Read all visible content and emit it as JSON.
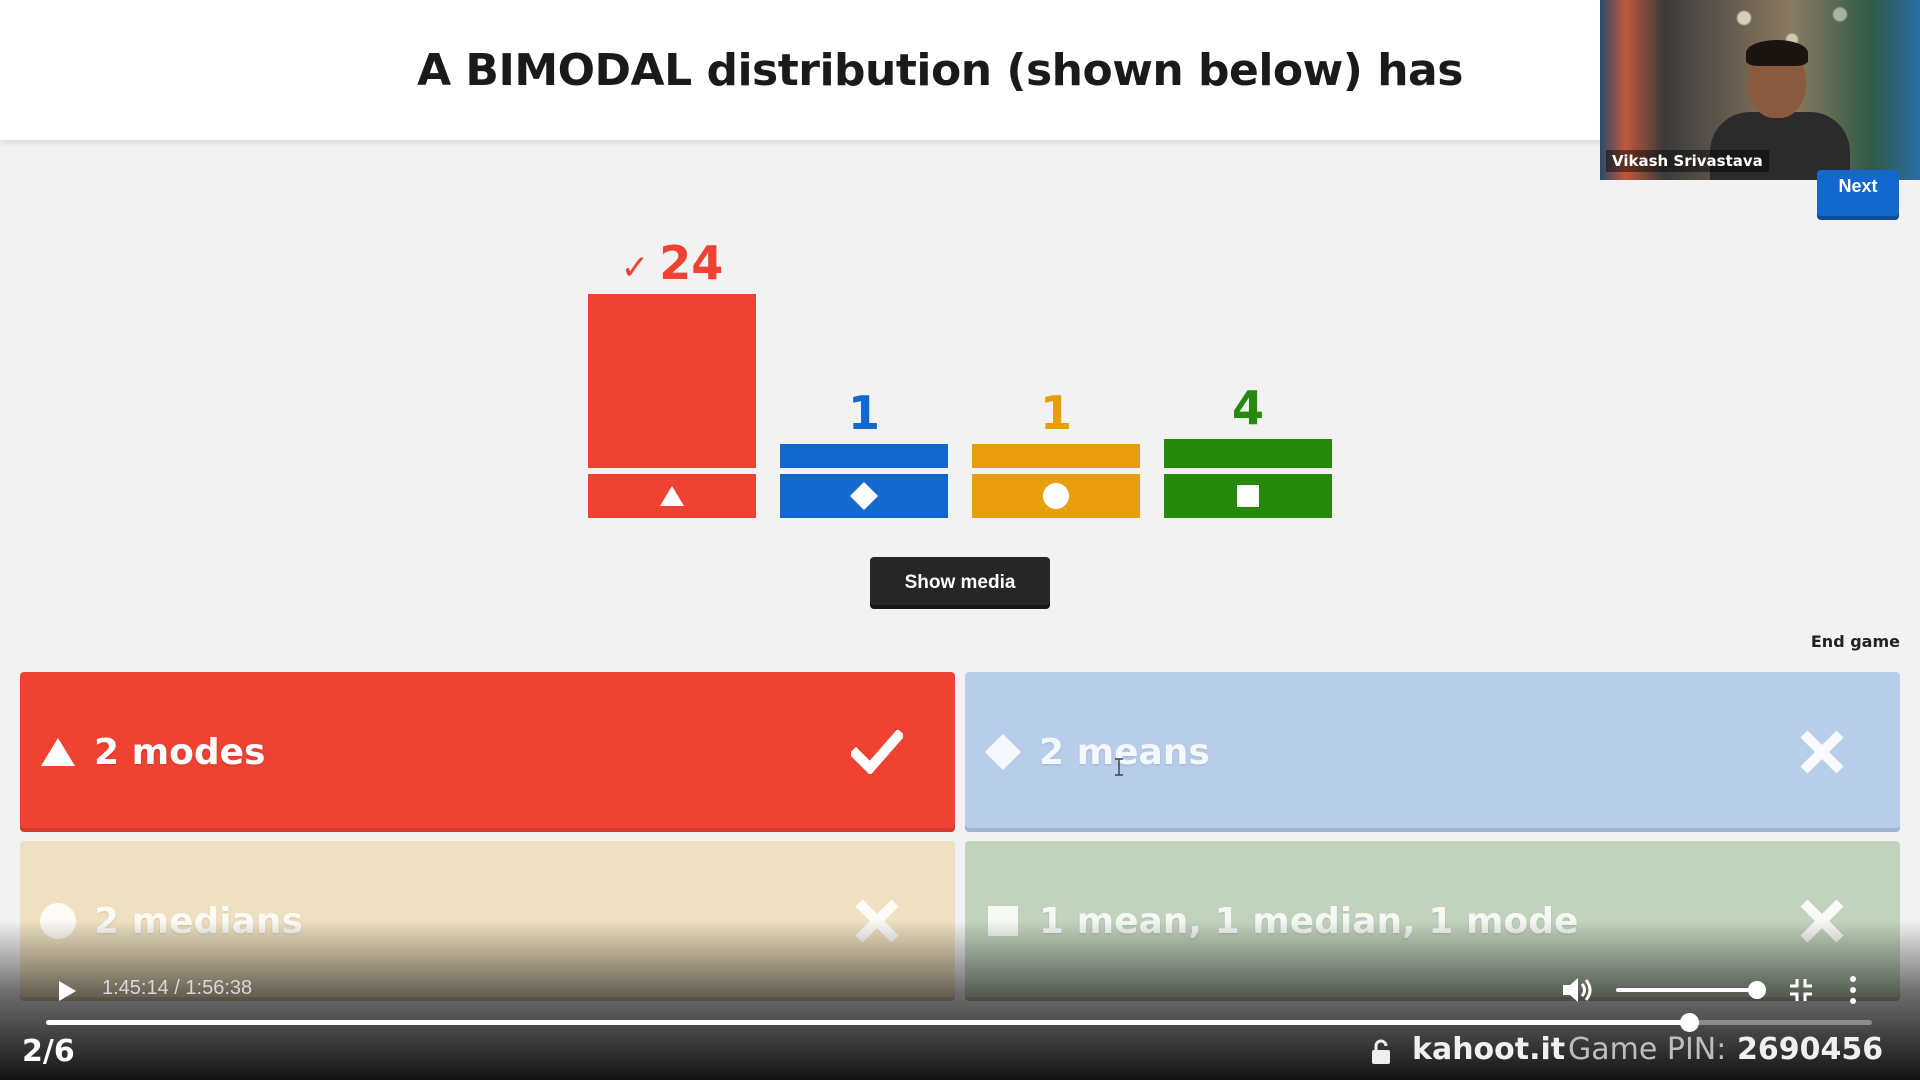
{
  "question": {
    "title": "A BIMODAL distribution (shown below) has"
  },
  "webcam": {
    "name": "Vikash Srivastava"
  },
  "buttons": {
    "next": "Next",
    "show_media": "Show media",
    "end_game": "End game"
  },
  "chart_data": {
    "type": "bar",
    "categories": [
      "triangle",
      "diamond",
      "circle",
      "square"
    ],
    "values": [
      24,
      1,
      1,
      4
    ],
    "colors": [
      "#f04232",
      "#1368ce",
      "#e89d0c",
      "#26890c"
    ],
    "correct": [
      true,
      false,
      false,
      false
    ],
    "labels": [
      "24",
      "1",
      "1",
      "4"
    ]
  },
  "answers": [
    {
      "label": "2 modes",
      "shape": "triangle",
      "correct": true,
      "color": "#f04232"
    },
    {
      "label": "2 means",
      "shape": "diamond",
      "correct": false,
      "color": "#b8cdea"
    },
    {
      "label": "2 medians",
      "shape": "circle",
      "correct": false,
      "color": "#eee0c0"
    },
    {
      "label": "1 mean, 1 median, 1 mode",
      "shape": "square",
      "correct": false,
      "color": "#c2d3bd"
    }
  ],
  "player": {
    "time": "1:45:14 / 1:56:38",
    "progress": 0.9,
    "volume": 0.88
  },
  "footer": {
    "question_counter": "2/6",
    "url": "kahoot.it",
    "pin_label": "Game PIN:",
    "pin_value": "2690456"
  }
}
